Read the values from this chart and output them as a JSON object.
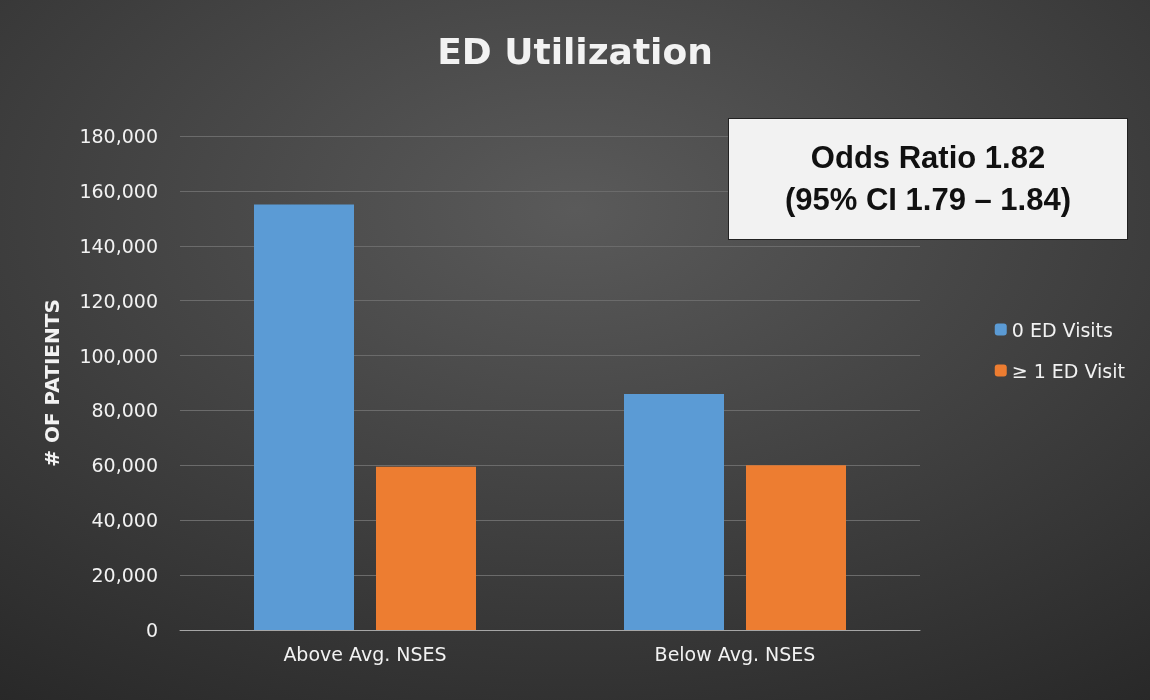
{
  "chart_data": {
    "type": "bar",
    "title": "ED Utilization",
    "ylabel": "# OF PATIENTS",
    "categories": [
      "Above Avg. NSES",
      "Below Avg. NSES"
    ],
    "series": [
      {
        "name": "0 ED Visits",
        "color": "#5b9bd5",
        "values": [
          155000,
          86000
        ]
      },
      {
        "name": "≥ 1 ED Visit",
        "color": "#ed7d31",
        "values": [
          59500,
          60000
        ]
      }
    ],
    "ylim": [
      0,
      180000
    ],
    "yticks": [
      0,
      {
        "value": 20000,
        "label": "20,000"
      },
      {
        "value": 40000,
        "label": "40,000"
      },
      {
        "value": 60000,
        "label": "60,000"
      },
      {
        "value": 80000,
        "label": "80,000"
      },
      {
        "value": 100000,
        "label": "100,000"
      },
      {
        "value": 120000,
        "label": "120,000"
      },
      {
        "value": 140000,
        "label": "140,000"
      },
      {
        "value": 160000,
        "label": "160,000"
      },
      {
        "value": 180000,
        "label": "180,000"
      }
    ],
    "grid": "y",
    "legend": "right",
    "annotations": [
      "Odds Ratio 1.82\n(95% CI 1.79 – 1.84)"
    ]
  }
}
